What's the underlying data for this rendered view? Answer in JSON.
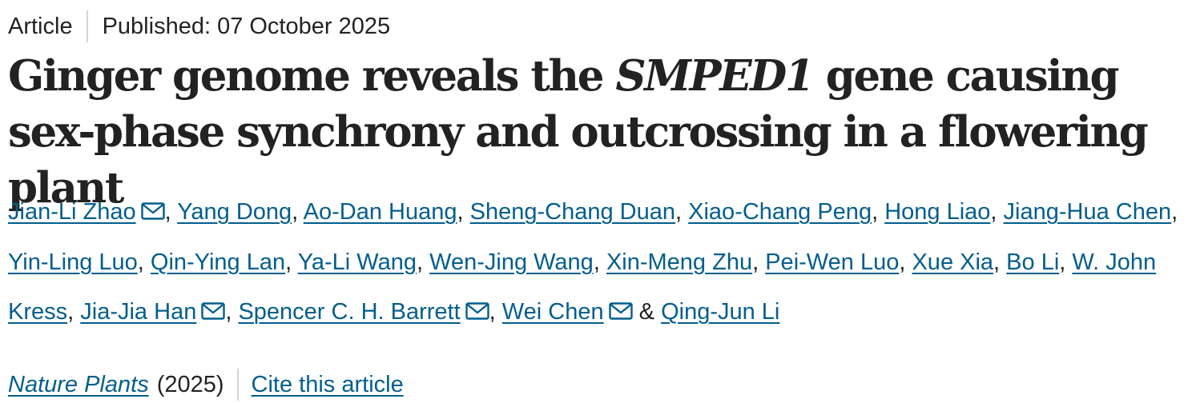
{
  "article_meta": {
    "type": "Article",
    "published": "Published: 07 October 2025"
  },
  "title": {
    "before": "Ginger genome reveals the ",
    "gene": "SMPED1",
    "after": " gene causing sex-phase synchrony and outcrossing in a flowering plant"
  },
  "authors": [
    {
      "name": "Jian-Li Zhao",
      "email_icon": true
    },
    {
      "name": "Yang Dong",
      "email_icon": false
    },
    {
      "name": "Ao-Dan Huang",
      "email_icon": false
    },
    {
      "name": "Sheng-Chang Duan",
      "email_icon": false
    },
    {
      "name": "Xiao-Chang Peng",
      "email_icon": false
    },
    {
      "name": "Hong Liao",
      "email_icon": false
    },
    {
      "name": "Jiang-Hua Chen",
      "email_icon": false
    },
    {
      "name": "Yin-Ling Luo",
      "email_icon": false
    },
    {
      "name": "Qin-Ying Lan",
      "email_icon": false
    },
    {
      "name": "Ya-Li Wang",
      "email_icon": false
    },
    {
      "name": "Wen-Jing Wang",
      "email_icon": false
    },
    {
      "name": "Xin-Meng Zhu",
      "email_icon": false
    },
    {
      "name": "Pei-Wen Luo",
      "email_icon": false
    },
    {
      "name": "Xue Xia",
      "email_icon": false
    },
    {
      "name": "Bo Li",
      "email_icon": false
    },
    {
      "name": "W. John Kress",
      "email_icon": false
    },
    {
      "name": "Jia-Jia Han",
      "email_icon": true
    },
    {
      "name": "Spencer C. H. Barrett",
      "email_icon": true
    },
    {
      "name": "Wei Chen",
      "email_icon": true
    },
    {
      "name": "Qing-Jun Li",
      "email_icon": false
    }
  ],
  "author_separator": ", ",
  "author_final_separator": " & ",
  "journal": {
    "name": "Nature Plants",
    "year": "(2025)",
    "cite_label": "Cite this article"
  },
  "colors": {
    "link": "#025e8d",
    "text": "#222222",
    "separator": "#d5d5d5"
  },
  "icons": {
    "author_contact": "mail-icon"
  }
}
